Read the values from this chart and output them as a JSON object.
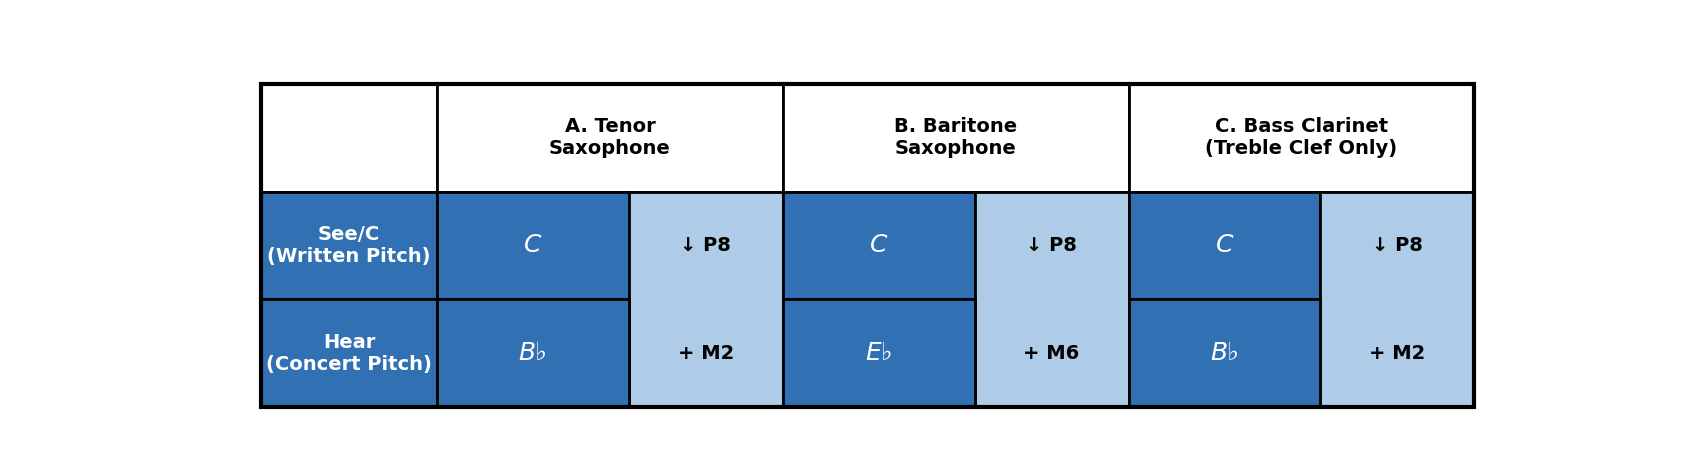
{
  "dark_blue": "#3070b3",
  "light_blue": "#aecce8",
  "white": "#ffffff",
  "black": "#000000",
  "col_headers": [
    "A. Tenor\nSaxophone",
    "B. Baritone\nSaxophone",
    "C. Bass Clarinet\n(Treble Clef Only)"
  ],
  "row1_label": "See/C\n(Written Pitch)",
  "row2_label": "Hear\n(Concert Pitch)",
  "written_notes": [
    "C",
    "C",
    "C"
  ],
  "concert_notes": [
    "B♭",
    "E♭",
    "B♭"
  ],
  "interval_line1": [
    "↓ P8",
    "↓ P8",
    "↓ P8"
  ],
  "interval_line2": [
    "+ M2",
    "+ M6",
    "+ M2"
  ],
  "figsize": [
    16.92,
    4.74
  ],
  "dpi": 100
}
